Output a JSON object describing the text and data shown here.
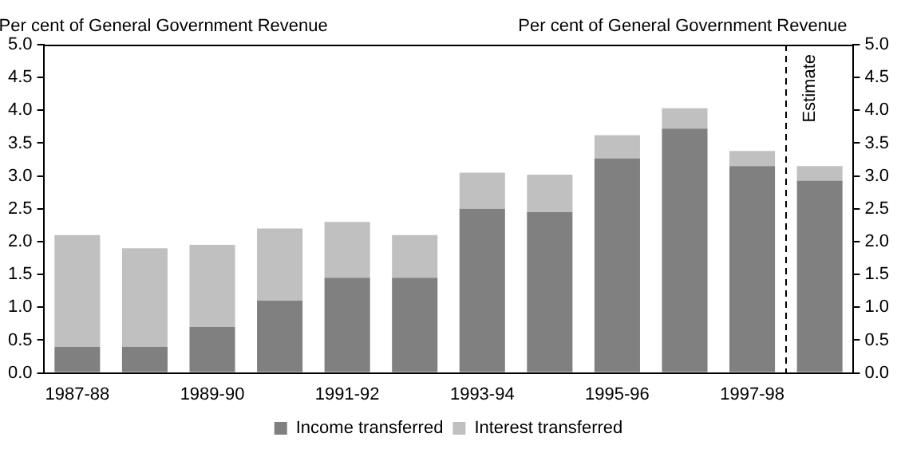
{
  "chart_data": {
    "type": "bar",
    "stacked": true,
    "categories": [
      "1987-88",
      null,
      "1989-90",
      null,
      "1991-92",
      null,
      "1993-94",
      null,
      "1995-96",
      null,
      "1997-98",
      null
    ],
    "series": [
      {
        "name": "Income transferred",
        "color": "#808080",
        "values": [
          0.4,
          0.4,
          0.7,
          1.1,
          1.45,
          1.45,
          2.5,
          2.45,
          3.27,
          3.72,
          3.15,
          2.93
        ]
      },
      {
        "name": "Interest transferred",
        "color": "#c0c0c0",
        "values": [
          1.7,
          1.5,
          1.25,
          1.1,
          0.85,
          0.65,
          0.55,
          0.57,
          0.35,
          0.31,
          0.23,
          0.22
        ]
      }
    ],
    "ylabel": "Per cent of General Government Revenue",
    "y2label": "Per cent of General Government Revenue",
    "ylim": [
      0,
      5
    ],
    "yticks": [
      {
        "value": 0,
        "label": "0.0"
      },
      0.5,
      {
        "value": 1,
        "label": "1.0"
      },
      1.5,
      {
        "value": 2,
        "label": "2.0"
      },
      2.5,
      {
        "value": 3,
        "label": "3.0"
      },
      3.5,
      {
        "value": 4,
        "label": "4.0"
      },
      4.5,
      {
        "value": 5,
        "label": "5.0"
      }
    ],
    "y2lim": [
      0,
      5
    ],
    "y2ticks": [
      {
        "value": 0,
        "label": "0.0"
      },
      0.5,
      {
        "value": 1,
        "label": "1.0"
      },
      1.5,
      {
        "value": 2,
        "label": "2.0"
      },
      2.5,
      {
        "value": 3,
        "label": "3.0"
      },
      3.5,
      {
        "value": 4,
        "label": "4.0"
      },
      4.5,
      {
        "value": 5,
        "label": "5.0"
      }
    ],
    "annotations": [
      "Estimate"
    ],
    "grid": false,
    "legend": "bottom"
  }
}
